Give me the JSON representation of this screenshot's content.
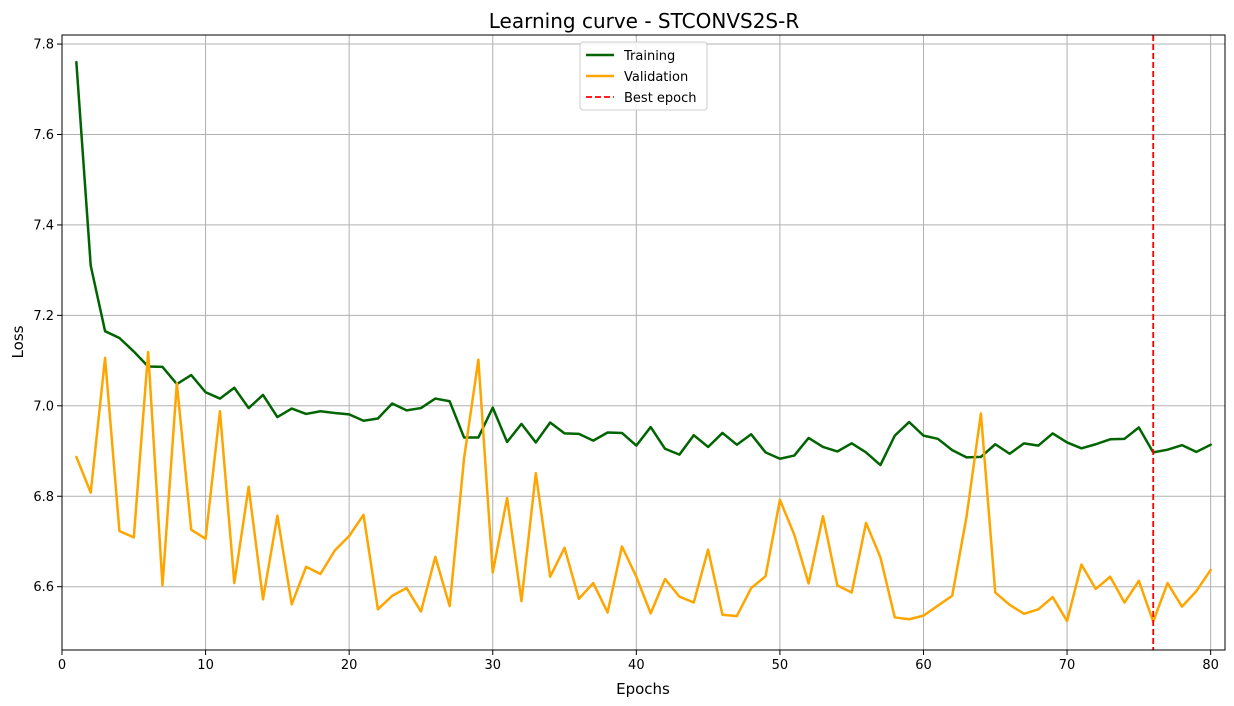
{
  "chart_data": {
    "type": "line",
    "title": "Learning curve - STCONVS2S-R",
    "xlabel": "Epochs",
    "ylabel": "Loss",
    "xlim": [
      0,
      81
    ],
    "ylim": [
      6.46,
      7.82
    ],
    "xticks": [
      0,
      10,
      20,
      30,
      40,
      50,
      60,
      70,
      80
    ],
    "yticks": [
      6.6,
      6.8,
      7.0,
      7.2,
      7.4,
      7.6,
      7.8
    ],
    "grid": true,
    "legend_position": "top-center",
    "best_epoch": 76,
    "x": [
      1,
      2,
      3,
      4,
      5,
      6,
      7,
      8,
      9,
      10,
      11,
      12,
      13,
      14,
      15,
      16,
      17,
      18,
      19,
      20,
      21,
      22,
      23,
      24,
      25,
      26,
      27,
      28,
      29,
      30,
      31,
      32,
      33,
      34,
      35,
      36,
      37,
      38,
      39,
      40,
      41,
      42,
      43,
      44,
      45,
      46,
      47,
      48,
      49,
      50,
      51,
      52,
      53,
      54,
      55,
      56,
      57,
      58,
      59,
      60,
      61,
      62,
      63,
      64,
      65,
      66,
      67,
      68,
      69,
      70,
      71,
      72,
      73,
      74,
      75,
      76,
      77,
      78,
      79,
      80
    ],
    "series": [
      {
        "name": "Training",
        "color": "#006400",
        "values": [
          7.76,
          7.31,
          7.165,
          7.15,
          7.12,
          7.087,
          7.086,
          7.048,
          7.068,
          7.03,
          7.016,
          7.04,
          6.995,
          7.024,
          6.975,
          6.994,
          6.982,
          6.988,
          6.984,
          6.981,
          6.967,
          6.972,
          7.005,
          6.99,
          6.995,
          7.016,
          7.01,
          6.93,
          6.93,
          6.996,
          6.92,
          6.96,
          6.919,
          6.963,
          6.939,
          6.938,
          6.923,
          6.941,
          6.94,
          6.912,
          6.953,
          6.905,
          6.892,
          6.935,
          6.909,
          6.94,
          6.914,
          6.937,
          6.897,
          6.883,
          6.89,
          6.929,
          6.909,
          6.899,
          6.917,
          6.897,
          6.869,
          6.934,
          6.964,
          6.934,
          6.927,
          6.902,
          6.886,
          6.887,
          6.915,
          6.894,
          6.917,
          6.912,
          6.939,
          6.919,
          6.906,
          6.915,
          6.926,
          6.927,
          6.952,
          6.897,
          6.903,
          6.913,
          6.898,
          6.914
        ]
      },
      {
        "name": "Validation",
        "color": "#ffa500",
        "values": [
          6.887,
          6.808,
          7.106,
          6.723,
          6.709,
          7.119,
          6.603,
          7.05,
          6.726,
          6.706,
          6.988,
          6.608,
          6.821,
          6.572,
          6.757,
          6.561,
          6.644,
          6.628,
          6.68,
          6.712,
          6.759,
          6.55,
          6.58,
          6.597,
          6.545,
          6.666,
          6.557,
          6.883,
          7.102,
          6.631,
          6.796,
          6.568,
          6.851,
          6.622,
          6.686,
          6.573,
          6.608,
          6.543,
          6.689,
          6.622,
          6.541,
          6.617,
          6.578,
          6.565,
          6.682,
          6.538,
          6.535,
          6.597,
          6.623,
          6.792,
          6.715,
          6.607,
          6.756,
          6.603,
          6.587,
          6.741,
          6.665,
          6.532,
          6.528,
          6.536,
          6.558,
          6.58,
          6.755,
          6.983,
          6.587,
          6.56,
          6.54,
          6.55,
          6.577,
          6.524,
          6.649,
          6.595,
          6.622,
          6.565,
          6.613,
          6.523,
          6.608,
          6.556,
          6.59,
          6.637
        ]
      }
    ],
    "legend": [
      "Training",
      "Validation",
      "Best epoch"
    ],
    "best_epoch_color": "#ff0000"
  }
}
